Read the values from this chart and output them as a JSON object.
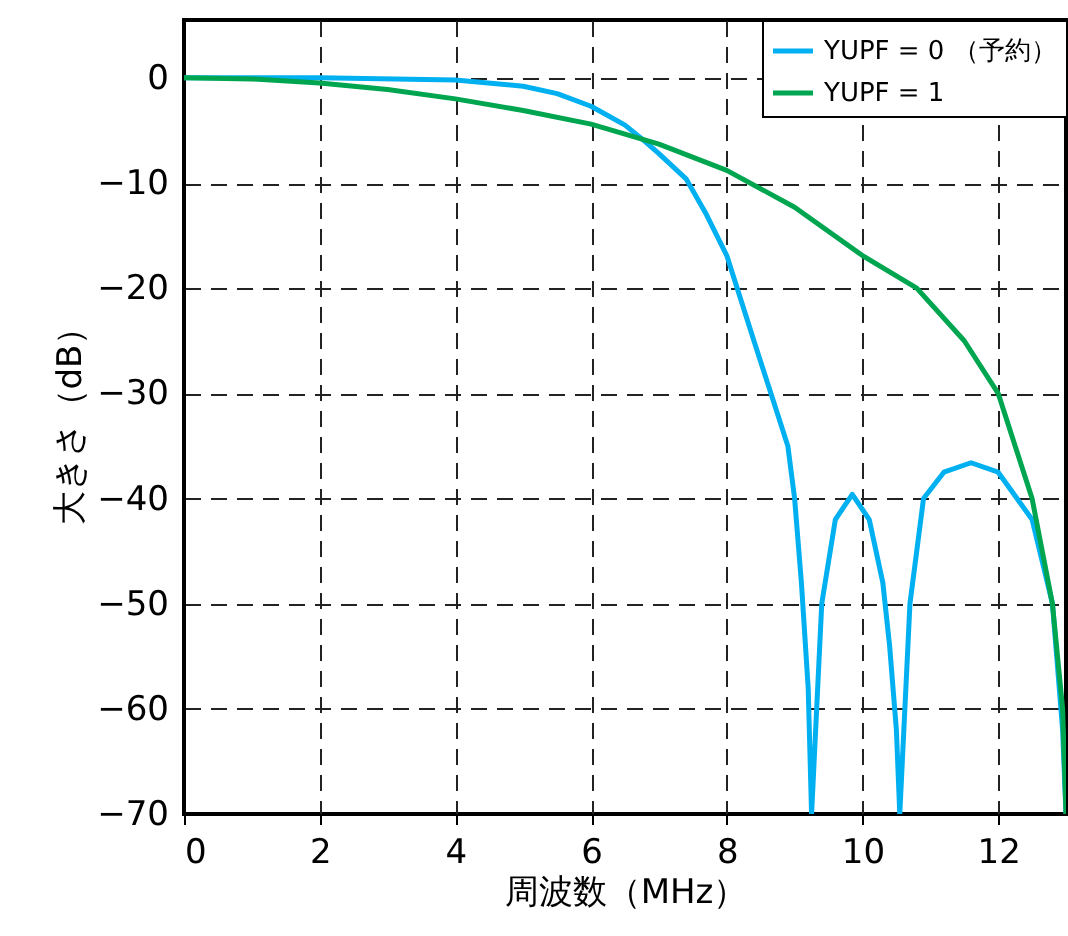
{
  "chart_data": {
    "type": "line",
    "xlabel": "周波数（MHz）",
    "ylabel": "大きさ（dB）",
    "xlim": [
      0,
      13
    ],
    "ylim": [
      -70,
      5.5
    ],
    "xticks": [
      0,
      2,
      4,
      6,
      8,
      10,
      12
    ],
    "yticks": [
      0,
      -10,
      -20,
      -30,
      -40,
      -50,
      -60,
      -70
    ],
    "grid": true,
    "legend": "top right",
    "line_style": "solid",
    "series": [
      {
        "name": "YUPF = 0 （予約）",
        "color": "#00b0f0",
        "x": [
          0,
          2,
          4,
          5,
          5.5,
          6,
          6.5,
          6.75,
          7,
          7.4,
          7.7,
          8,
          8.4,
          8.7,
          8.9,
          9,
          9.1,
          9.2,
          9.25,
          9.4,
          9.6,
          9.85,
          10.1,
          10.3,
          10.4,
          10.5,
          10.55,
          10.7,
          10.9,
          11.2,
          11.6,
          12,
          12.5,
          12.8,
          12.95,
          13
        ],
        "values": [
          0,
          0,
          -0.2,
          -0.8,
          -1.5,
          -2.7,
          -4.5,
          -5.8,
          -7.2,
          -9.6,
          -13,
          -16.9,
          -25,
          -31,
          -35,
          -40,
          -48,
          -58,
          -70,
          -50,
          -42,
          -39.6,
          -42,
          -48,
          -54,
          -62,
          -70,
          -50,
          -40,
          -37.5,
          -36.6,
          -37.5,
          -42,
          -50,
          -62,
          -70
        ]
      },
      {
        "name": "YUPF = 1",
        "color": "#00a550",
        "x": [
          0,
          1,
          2,
          3,
          4,
          5,
          6,
          7,
          8,
          9,
          10,
          10.8,
          11.5,
          12,
          12.5,
          12.8,
          12.95,
          13
        ],
        "values": [
          0,
          -0.1,
          -0.5,
          -1.1,
          -2,
          -3.1,
          -4.4,
          -6.3,
          -8.8,
          -12.3,
          -16.9,
          -20,
          -25,
          -30,
          -40,
          -50,
          -60,
          -70
        ]
      }
    ]
  }
}
